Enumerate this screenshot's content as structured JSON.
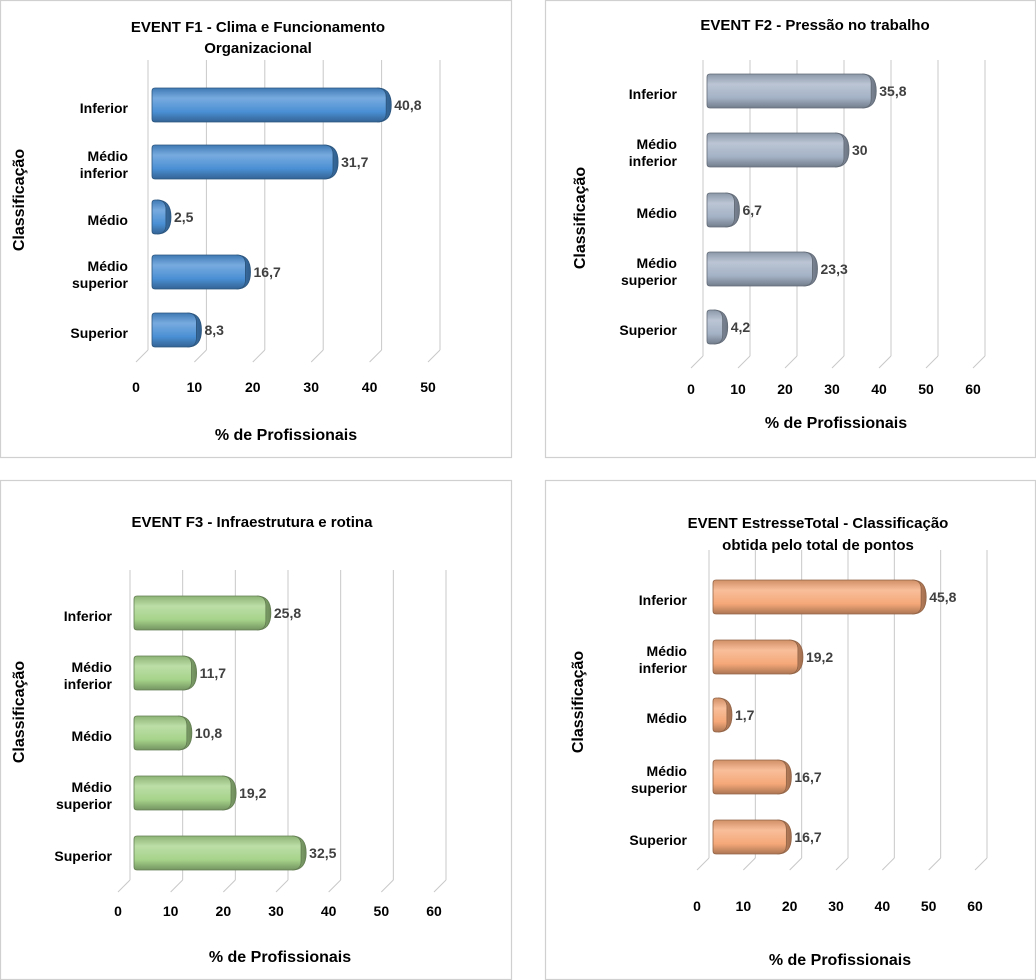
{
  "chart_data": [
    {
      "type": "bar",
      "orientation": "horizontal",
      "title": "EVENT F1  - Clima e Funcionamento Organizacional",
      "title_lines": [
        "EVENT F1  - Clima e Funcionamento",
        "Organizacional"
      ],
      "categories": [
        "Inferior",
        "Médio inferior",
        "Médio",
        "Médio superior",
        "Superior"
      ],
      "category_lines": [
        [
          "Inferior"
        ],
        [
          "Médio",
          "inferior"
        ],
        [
          "Médio"
        ],
        [
          "Médio",
          "superior"
        ],
        [
          "Superior"
        ]
      ],
      "values": [
        40.8,
        31.7,
        2.5,
        16.7,
        8.3
      ],
      "value_labels": [
        "40,8",
        "31,7",
        "2,5",
        "16,7",
        "8,3"
      ],
      "xlabel": "% de Profissionais",
      "ylabel": "Classificação",
      "xlim": [
        0,
        50
      ],
      "xticks": [
        "0",
        "10",
        "20",
        "30",
        "40",
        "50"
      ],
      "color": "#4a8fd4",
      "grid": true,
      "style": "3d-cylinder"
    },
    {
      "type": "bar",
      "orientation": "horizontal",
      "title": "EVENT F2  - Pressão no trabalho",
      "title_lines": [
        "EVENT F2  - Pressão no trabalho"
      ],
      "categories": [
        "Inferior",
        "Médio inferior",
        "Médio",
        "Médio superior",
        "Superior"
      ],
      "category_lines": [
        [
          "Inferior"
        ],
        [
          "Médio",
          "inferior"
        ],
        [
          "Médio"
        ],
        [
          "Médio",
          "superior"
        ],
        [
          "Superior"
        ]
      ],
      "values": [
        35.8,
        30,
        6.7,
        23.3,
        4.2
      ],
      "value_labels": [
        "35,8",
        "30",
        "6,7",
        "23,3",
        "4,2"
      ],
      "xlabel": "% de Profissionais",
      "ylabel": "Classificação",
      "xlim": [
        0,
        60
      ],
      "xticks": [
        "0",
        "10",
        "20",
        "30",
        "40",
        "50",
        "60"
      ],
      "color": "#a4b2c6",
      "grid": true,
      "style": "3d-cylinder"
    },
    {
      "type": "bar",
      "orientation": "horizontal",
      "title": "EVENT F3  - Infraestrutura e rotina",
      "title_lines": [
        "EVENT F3  - Infraestrutura e rotina"
      ],
      "categories": [
        "Inferior",
        "Médio inferior",
        "Médio",
        "Médio superior",
        "Superior"
      ],
      "category_lines": [
        [
          "Inferior"
        ],
        [
          "Médio",
          "inferior"
        ],
        [
          "Médio"
        ],
        [
          "Médio",
          "superior"
        ],
        [
          "Superior"
        ]
      ],
      "values": [
        25.8,
        11.7,
        10.8,
        19.2,
        32.5
      ],
      "value_labels": [
        "25,8",
        "11,7",
        "10,8",
        "19,2",
        "32,5"
      ],
      "xlabel": "% de Profissionais",
      "ylabel": "Classificação",
      "xlim": [
        0,
        60
      ],
      "xticks": [
        "0",
        "10",
        "20",
        "30",
        "40",
        "50",
        "60"
      ],
      "color": "#a6d38a",
      "grid": true,
      "style": "3d-cylinder"
    },
    {
      "type": "bar",
      "orientation": "horizontal",
      "title": "EVENT  EstresseTotal - Classificação obtida pelo total de pontos",
      "title_lines": [
        "EVENT  EstresseTotal - Classificação",
        "obtida pelo total de pontos"
      ],
      "categories": [
        "Inferior",
        "Médio inferior",
        "Médio",
        "Médio superior",
        "Superior"
      ],
      "category_lines": [
        [
          "Inferior"
        ],
        [
          "Médio",
          "inferior"
        ],
        [
          "Médio"
        ],
        [
          "Médio",
          "superior"
        ],
        [
          "Superior"
        ]
      ],
      "values": [
        45.8,
        19.2,
        1.7,
        16.7,
        16.7
      ],
      "value_labels": [
        "45,8",
        "19,2",
        "1,7",
        "16,7",
        "16,7"
      ],
      "xlabel": "% de Profissionais",
      "ylabel": "Classificação",
      "xlim": [
        0,
        60
      ],
      "xticks": [
        "0",
        "10",
        "20",
        "30",
        "40",
        "50",
        "60"
      ],
      "color": "#f5a878",
      "grid": true,
      "style": "3d-cylinder"
    }
  ]
}
